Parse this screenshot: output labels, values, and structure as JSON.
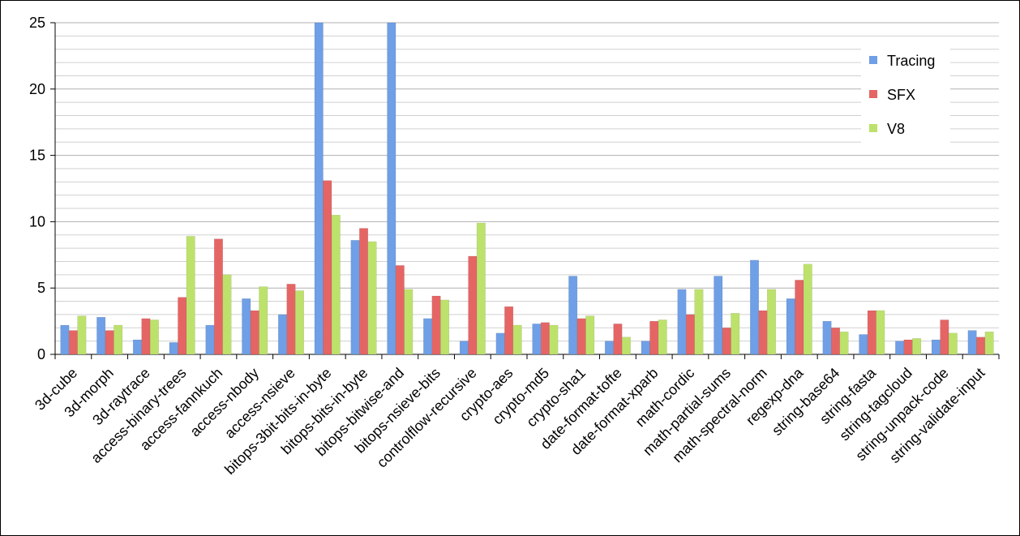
{
  "chart_data": {
    "type": "bar",
    "categories": [
      "3d-cube",
      "3d-morph",
      "3d-raytrace",
      "access-binary-trees",
      "access-fannkuch",
      "access-nbody",
      "access-nsieve",
      "bitops-3bit-bits-in-byte",
      "bitops-bits-in-byte",
      "bitops-bitwise-and",
      "bitops-nsieve-bits",
      "controlflow-recursive",
      "crypto-aes",
      "crypto-md5",
      "crypto-sha1",
      "date-format-tofte",
      "date-format-xparb",
      "math-cordic",
      "math-partial-sums",
      "math-spectral-norm",
      "regexp-dna",
      "string-base64",
      "string-fasta",
      "string-tagcloud",
      "string-unpack-code",
      "string-validate-input"
    ],
    "series": [
      {
        "name": "Tracing",
        "color": "#6f9fe6",
        "values": [
          2.2,
          2.8,
          1.1,
          0.9,
          2.2,
          4.2,
          3.0,
          25,
          8.6,
          25,
          2.7,
          1.0,
          1.6,
          2.3,
          5.9,
          1.0,
          1.0,
          4.9,
          5.9,
          7.1,
          4.2,
          2.5,
          1.5,
          1.0,
          1.1,
          1.8
        ]
      },
      {
        "name": "SFX",
        "color": "#e56565",
        "values": [
          1.8,
          1.8,
          2.7,
          4.3,
          8.7,
          3.3,
          5.3,
          13.1,
          9.5,
          6.7,
          4.4,
          7.4,
          3.6,
          2.4,
          2.7,
          2.3,
          2.5,
          3.0,
          2.0,
          3.3,
          5.6,
          2.0,
          3.3,
          1.1,
          2.6,
          1.3
        ]
      },
      {
        "name": "V8",
        "color": "#bde26c",
        "values": [
          2.9,
          2.2,
          2.6,
          8.9,
          6.0,
          5.1,
          4.8,
          10.5,
          8.5,
          4.9,
          4.1,
          9.9,
          2.2,
          2.2,
          2.9,
          1.3,
          2.6,
          4.9,
          3.1,
          4.9,
          6.8,
          1.7,
          3.3,
          1.2,
          1.6,
          1.7
        ]
      }
    ],
    "ylim": [
      0,
      25
    ],
    "yticks": [
      0,
      5,
      10,
      15,
      20,
      25
    ],
    "minor_yticks": [
      1,
      2,
      3,
      4,
      6,
      7,
      8,
      9,
      11,
      12,
      13,
      14,
      16,
      17,
      18,
      19,
      21,
      22,
      23,
      24
    ],
    "grid": true,
    "legend": "upper-right"
  }
}
